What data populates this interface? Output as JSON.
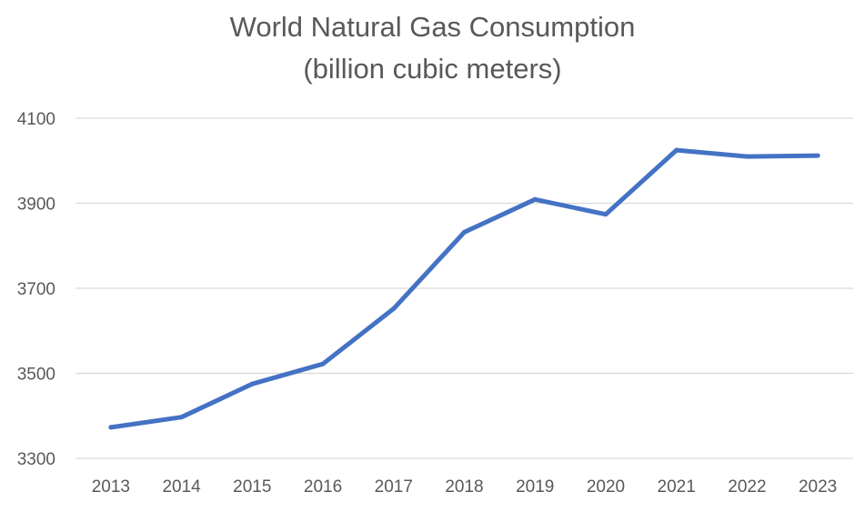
{
  "chart_data": {
    "type": "line",
    "title": "World Natural Gas Consumption",
    "subtitle": "(billion cubic meters)",
    "xlabel": "",
    "ylabel": "",
    "categories": [
      "2013",
      "2014",
      "2015",
      "2016",
      "2017",
      "2018",
      "2019",
      "2020",
      "2021",
      "2022",
      "2023"
    ],
    "series": [
      {
        "values": [
          3373,
          3397,
          3475,
          3522,
          3652,
          3832,
          3909,
          3874,
          4025,
          4010,
          4012
        ]
      }
    ],
    "y_ticks": [
      3300,
      3500,
      3700,
      3900,
      4100
    ],
    "ylim": [
      3300,
      4100
    ],
    "grid": "horizontal",
    "legend": "none",
    "colors": {
      "line": "#4472C4",
      "grid": "#D9D9D9",
      "text": "#595959"
    }
  }
}
